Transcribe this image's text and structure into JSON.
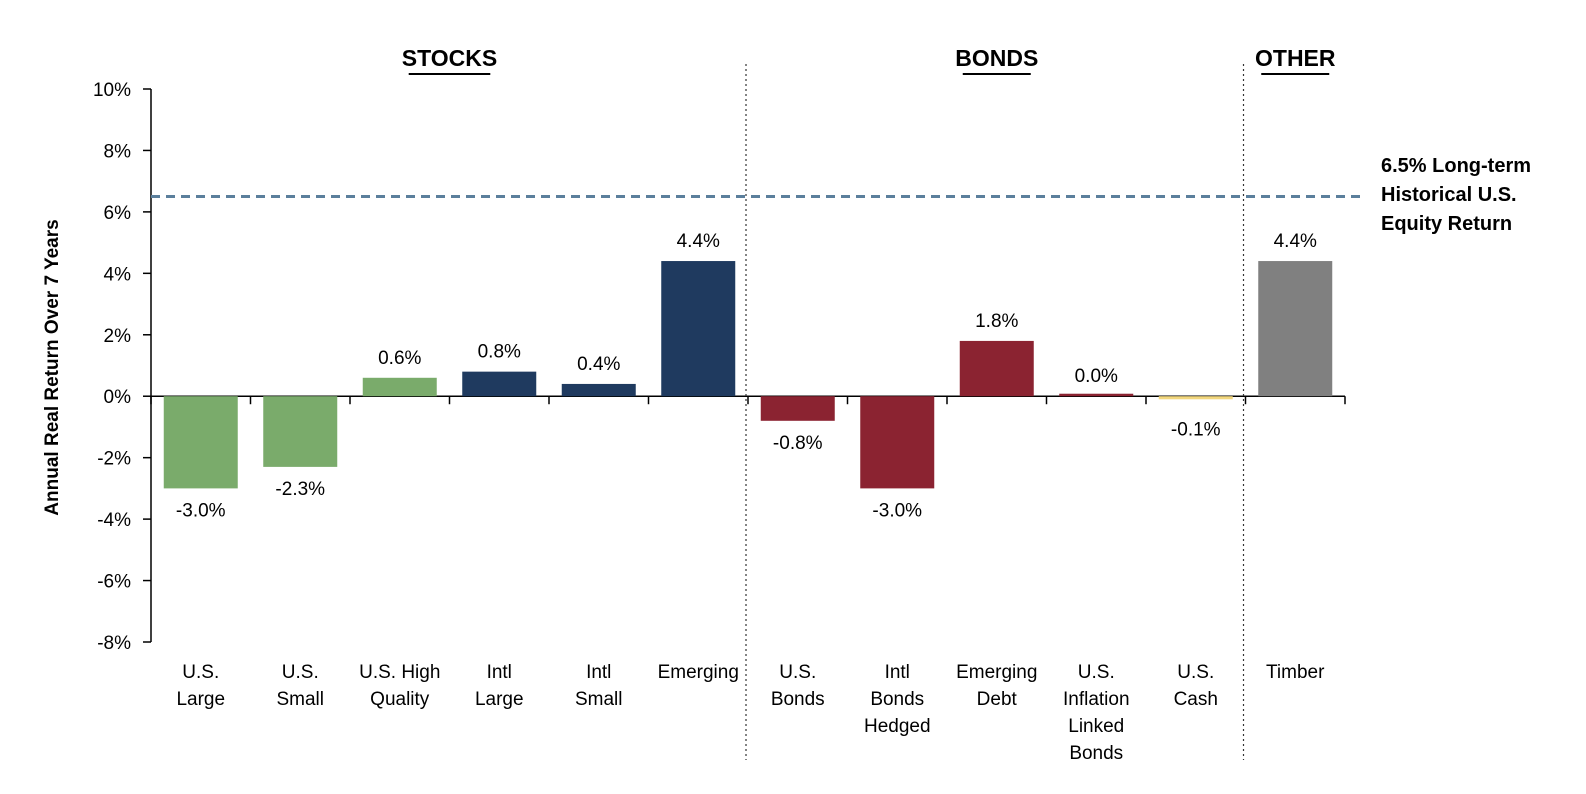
{
  "chart_data": {
    "type": "bar",
    "ylabel": "Annual Real Return Over 7 Years",
    "ylim": [
      -8,
      10
    ],
    "y_ticks": [
      "10%",
      "8%",
      "6%",
      "4%",
      "2%",
      "0%",
      "-2%",
      "-4%",
      "-6%",
      "-8%"
    ],
    "categories": [
      [
        "U.S.",
        "Large"
      ],
      [
        "U.S.",
        "Small"
      ],
      [
        "U.S. High",
        "Quality"
      ],
      [
        "Intl",
        "Large"
      ],
      [
        "Intl",
        "Small"
      ],
      [
        "Emerging"
      ],
      [
        "U.S.",
        "Bonds"
      ],
      [
        "Intl",
        "Bonds",
        "Hedged"
      ],
      [
        "Emerging",
        "Debt"
      ],
      [
        "U.S.",
        "Inflation",
        "Linked",
        "Bonds"
      ],
      [
        "U.S.",
        "Cash"
      ],
      [
        "Timber"
      ]
    ],
    "values": [
      -3.0,
      -2.3,
      0.6,
      0.8,
      0.4,
      4.4,
      -0.8,
      -3.0,
      1.8,
      0.0,
      -0.1,
      4.4
    ],
    "data_labels": [
      "-3.0%",
      "-2.3%",
      "0.6%",
      "0.8%",
      "0.4%",
      "4.4%",
      "-0.8%",
      "-3.0%",
      "1.8%",
      "0.0%",
      "-0.1%",
      "4.4%"
    ],
    "bar_colors": [
      "#7aab6b",
      "#7aab6b",
      "#7aab6b",
      "#1f3a5f",
      "#1f3a5f",
      "#1f3a5f",
      "#8b2331",
      "#8b2331",
      "#8b2331",
      "#8b2331",
      "#f2d77e",
      "#808080"
    ],
    "groups": [
      {
        "title": "STOCKS",
        "start": 0,
        "end": 5
      },
      {
        "title": "BONDS",
        "start": 6,
        "end": 10
      },
      {
        "title": "OTHER",
        "start": 11,
        "end": 11
      }
    ],
    "reference_line": {
      "value": 6.5,
      "color": "#5b7f9c",
      "label": [
        "6.5% Long-term",
        "Historical U.S.",
        "Equity Return"
      ]
    },
    "grid": false
  }
}
